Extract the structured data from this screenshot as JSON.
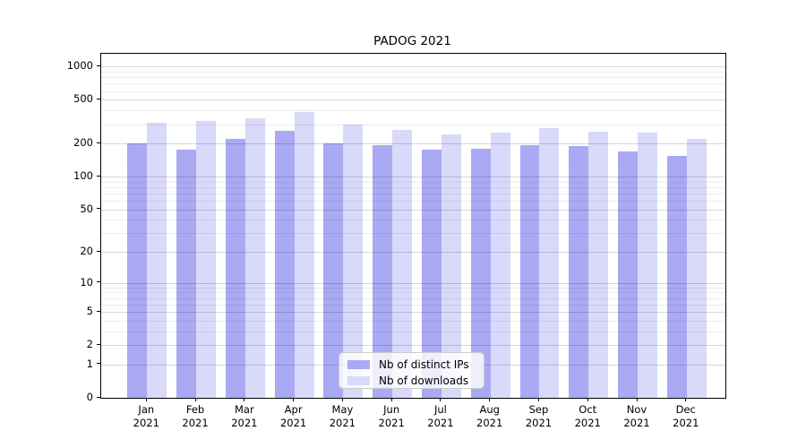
{
  "chart_data": {
    "type": "bar",
    "title": "PADOG 2021",
    "categories": [
      "Jan 2021",
      "Feb 2021",
      "Mar 2021",
      "Apr 2021",
      "May 2021",
      "Jun 2021",
      "Jul 2021",
      "Aug 2021",
      "Sep 2021",
      "Oct 2021",
      "Nov 2021",
      "Dec 2021"
    ],
    "series": [
      {
        "name": "Nb of distinct IPs",
        "key": "distinct-ips",
        "color": "#a9a9f4",
        "values": [
          200,
          175,
          220,
          260,
          200,
          195,
          175,
          180,
          195,
          190,
          170,
          155
        ]
      },
      {
        "name": "Nb of downloads",
        "key": "downloads",
        "color": "#d9d9fa",
        "values": [
          310,
          320,
          340,
          385,
          300,
          265,
          245,
          250,
          275,
          255,
          250,
          220
        ]
      }
    ],
    "yscale": "log1p",
    "ylim": [
      0,
      1310
    ],
    "yticks": [
      0,
      1,
      2,
      5,
      10,
      20,
      50,
      100,
      200,
      500,
      1000
    ],
    "yticks_minor": [
      3,
      4,
      6,
      7,
      8,
      9,
      30,
      40,
      60,
      70,
      80,
      90,
      300,
      400,
      600,
      700,
      800,
      900
    ],
    "grid": true,
    "legend_position": "bottom-center"
  }
}
